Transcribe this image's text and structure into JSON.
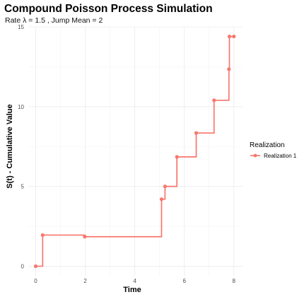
{
  "chart_data": {
    "type": "line",
    "step": true,
    "title": "Compound Poisson Process Simulation",
    "subtitle": "Rate λ = 1.5 , Jump Mean = 2",
    "xlabel": "Time",
    "ylabel": "S(t) - Cumulative Value",
    "xlim": [
      -0.3,
      8.35
    ],
    "ylim": [
      -0.6,
      15
    ],
    "x_ticks": [
      0,
      2,
      4,
      6,
      8
    ],
    "y_ticks": [
      0,
      5,
      10,
      15
    ],
    "grid": true,
    "legend": {
      "title": "Realization",
      "position": "right"
    },
    "series": [
      {
        "name": "Realization 1",
        "color": "#F8766D",
        "points": [
          {
            "x": 0.0,
            "y": 0.0
          },
          {
            "x": 0.28,
            "y": 1.95
          },
          {
            "x": 1.98,
            "y": 1.85
          },
          {
            "x": 5.08,
            "y": 4.2
          },
          {
            "x": 5.22,
            "y": 5.0
          },
          {
            "x": 5.7,
            "y": 6.85
          },
          {
            "x": 6.48,
            "y": 8.35
          },
          {
            "x": 7.2,
            "y": 10.4
          },
          {
            "x": 7.8,
            "y": 12.35
          },
          {
            "x": 7.82,
            "y": 14.4
          },
          {
            "x": 8.0,
            "y": 14.4
          }
        ]
      }
    ]
  }
}
